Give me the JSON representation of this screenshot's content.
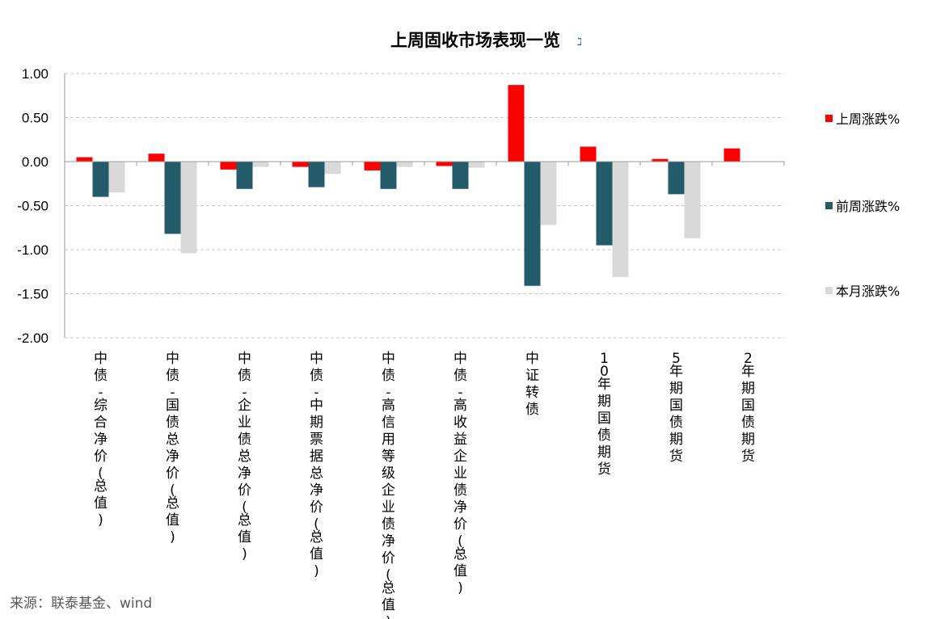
{
  "source": "来源：联泰基金、wind",
  "title_mark": "ℷ",
  "colors": {
    "last_week": "#ff0000",
    "prev_week": "#235b6b",
    "this_month": "#d9d9d9",
    "grid": "#c8c8c8",
    "axis": "#999999"
  },
  "chart_data": {
    "type": "bar",
    "title": "上周固收市场表现一览",
    "ylim": [
      -2.0,
      1.0
    ],
    "yticks": [
      "1.00",
      "0.50",
      "0.00",
      "-0.50",
      "-1.00",
      "-1.50",
      "-2.00"
    ],
    "ytick_values": [
      1.0,
      0.5,
      0.0,
      -0.5,
      -1.0,
      -1.5,
      -2.0
    ],
    "grid": true,
    "legend_position": "right",
    "categories": [
      "中债-综合净价(总值)",
      "中债-国债总净价(总值)",
      "中债-企业债总净价(总值)",
      "中债-中期票据总净价(总值)",
      "中债-高信用等级企业债净价(总值)",
      "中债-高收益企业债净价(总值)",
      "中证转债",
      "10年期国债期货",
      "5年期国债期货",
      "2年期国债期货"
    ],
    "series": [
      {
        "name": "上周涨跌%",
        "color": "#ff0000",
        "values": [
          0.05,
          0.09,
          -0.09,
          -0.06,
          -0.1,
          -0.05,
          0.87,
          0.17,
          0.03,
          0.15
        ]
      },
      {
        "name": "前周涨跌%",
        "color": "#235b6b",
        "values": [
          -0.4,
          -0.82,
          -0.31,
          -0.29,
          -0.31,
          -0.31,
          -1.41,
          -0.95,
          -0.37,
          0.0
        ]
      },
      {
        "name": "本月涨跌%",
        "color": "#d9d9d9",
        "values": [
          -0.35,
          -1.04,
          -0.06,
          -0.14,
          -0.06,
          -0.07,
          -0.72,
          -1.31,
          -0.87,
          0.0
        ]
      }
    ]
  }
}
